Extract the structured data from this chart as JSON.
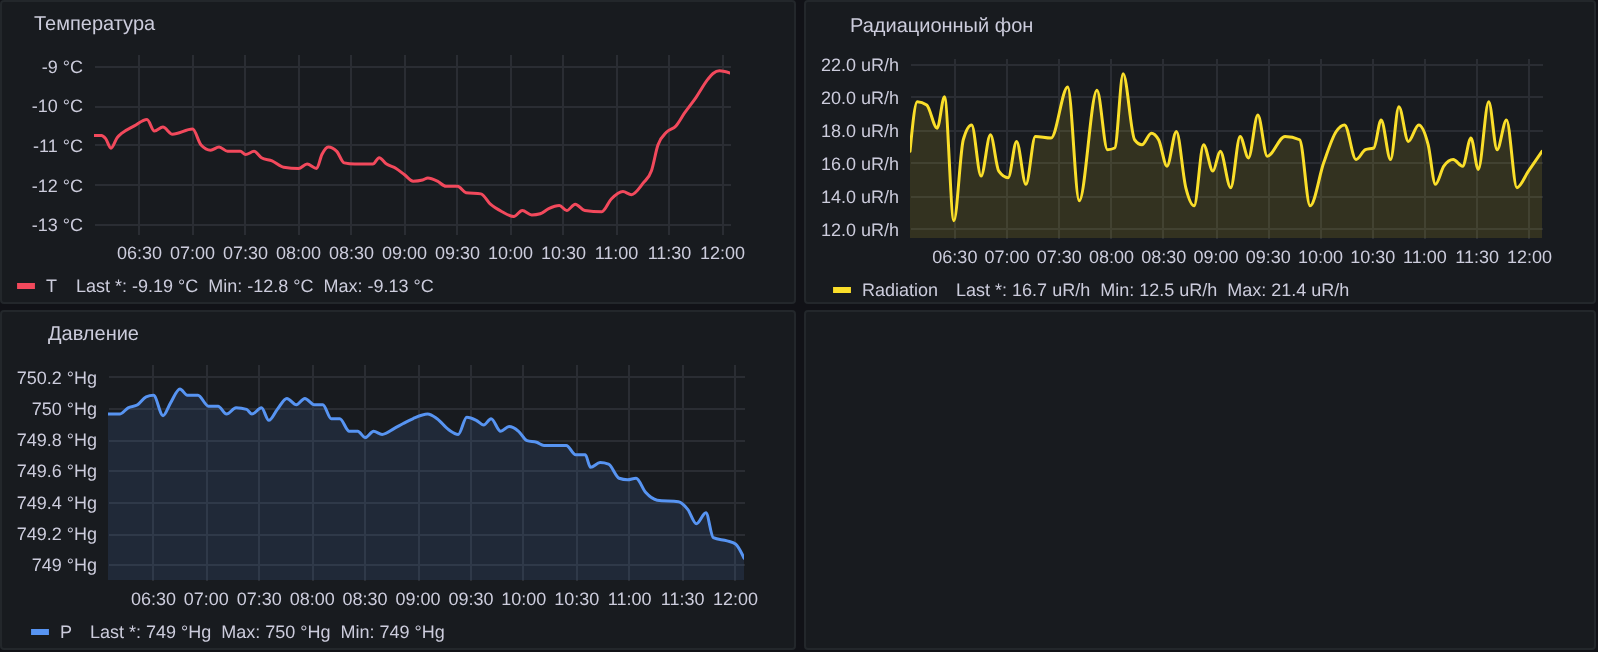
{
  "chart_data": [
    {
      "type": "line",
      "title": "Температура",
      "legend": "bottom left",
      "grid": true,
      "annotations": [
        "Last *: -9.19 °C  Min: -12.8 °C  Max: -9.13 °C"
      ],
      "xlim": [
        6.08,
        12.08
      ],
      "xticks": [
        {
          "value": 6.5,
          "label": "06:30"
        },
        {
          "value": 7,
          "label": "07:00"
        },
        {
          "value": 7.5,
          "label": "07:30"
        },
        {
          "value": 8,
          "label": "08:00"
        },
        {
          "value": 8.5,
          "label": "08:30"
        },
        {
          "value": 9,
          "label": "09:00"
        },
        {
          "value": 9.5,
          "label": "09:30"
        },
        {
          "value": 10,
          "label": "10:00"
        },
        {
          "value": 10.5,
          "label": "10:30"
        },
        {
          "value": 11,
          "label": "11:00"
        },
        {
          "value": 11.5,
          "label": "11:30"
        },
        {
          "value": 12,
          "label": "12:00"
        }
      ],
      "ylim": [
        -13.24,
        -8.71
      ],
      "yticks": [
        {
          "value": -13,
          "label": "-13 °C"
        },
        {
          "value": -12,
          "label": "-12 °C"
        },
        {
          "value": -11,
          "label": "-11 °C"
        },
        {
          "value": -10,
          "label": "-10 °C"
        },
        {
          "value": -9,
          "label": "-9 °C"
        }
      ],
      "x": [
        6.08,
        6.15,
        6.19,
        6.24,
        6.3,
        6.34,
        6.46,
        6.58,
        6.65,
        6.73,
        6.82,
        7.01,
        7.09,
        7.18,
        7.26,
        7.34,
        7.46,
        7.51,
        7.59,
        7.66,
        7.76,
        7.87,
        8.01,
        8.09,
        8.18,
        8.23,
        8.29,
        8.37,
        8.44,
        8.54,
        8.71,
        8.77,
        8.84,
        8.93,
        9.01,
        9.09,
        9.18,
        9.23,
        9.32,
        9.4,
        9.51,
        9.59,
        9.73,
        9.82,
        9.93,
        10.04,
        10.12,
        10.21,
        10.29,
        10.37,
        10.47,
        10.54,
        10.62,
        10.71,
        10.87,
        10.96,
        11.07,
        11.15,
        11.26,
        11.34,
        11.4,
        11.48,
        11.57,
        11.65,
        11.76,
        11.87,
        11.92,
        11.98,
        12.03,
        12.08
      ],
      "series": [
        {
          "name": "T",
          "color": "#f2495c",
          "values": [
            -10.76,
            -10.76,
            -10.84,
            -11.08,
            -10.81,
            -10.71,
            -10.52,
            -10.36,
            -10.65,
            -10.55,
            -10.73,
            -10.6,
            -11.0,
            -11.13,
            -11.05,
            -11.16,
            -11.16,
            -11.24,
            -11.16,
            -11.32,
            -11.4,
            -11.56,
            -11.59,
            -11.48,
            -11.59,
            -11.24,
            -11.05,
            -11.16,
            -11.45,
            -11.48,
            -11.48,
            -11.32,
            -11.48,
            -11.59,
            -11.75,
            -11.91,
            -11.88,
            -11.83,
            -11.91,
            -12.04,
            -12.04,
            -12.2,
            -12.23,
            -12.49,
            -12.68,
            -12.8,
            -12.65,
            -12.76,
            -12.73,
            -12.6,
            -12.52,
            -12.65,
            -12.49,
            -12.65,
            -12.68,
            -12.36,
            -12.17,
            -12.25,
            -11.96,
            -11.64,
            -11.0,
            -10.68,
            -10.52,
            -10.2,
            -9.8,
            -9.35,
            -9.2,
            -9.13,
            -9.15,
            -9.19
          ]
        }
      ]
    },
    {
      "type": "area",
      "title": "Радиационный фон",
      "legend": "bottom left",
      "grid": true,
      "annotations": [
        "Last *: 16.7 uR/h  Min: 12.5 uR/h  Max: 21.4 uR/h"
      ],
      "xlim": [
        6.08,
        12.13
      ],
      "xticks": [
        {
          "value": 6.5,
          "label": "06:30"
        },
        {
          "value": 7,
          "label": "07:00"
        },
        {
          "value": 7.5,
          "label": "07:30"
        },
        {
          "value": 8,
          "label": "08:00"
        },
        {
          "value": 8.5,
          "label": "08:30"
        },
        {
          "value": 9,
          "label": "09:00"
        },
        {
          "value": 9.5,
          "label": "09:30"
        },
        {
          "value": 10,
          "label": "10:00"
        },
        {
          "value": 10.5,
          "label": "10:30"
        },
        {
          "value": 11,
          "label": "11:00"
        },
        {
          "value": 11.5,
          "label": "11:30"
        },
        {
          "value": 12,
          "label": "12:00"
        }
      ],
      "ylim": [
        11.45,
        22.35
      ],
      "yticks": [
        {
          "value": 12,
          "label": "12.0 uR/h"
        },
        {
          "value": 14,
          "label": "14.0 uR/h"
        },
        {
          "value": 16,
          "label": "16.0 uR/h"
        },
        {
          "value": 18,
          "label": "18.0 uR/h"
        },
        {
          "value": 20,
          "label": "20.0 uR/h"
        },
        {
          "value": 22,
          "label": "22.0 uR/h"
        }
      ],
      "x": [
        6.08,
        6.15,
        6.24,
        6.34,
        6.41,
        6.5,
        6.59,
        6.67,
        6.76,
        6.85,
        6.93,
        7.02,
        7.1,
        7.19,
        7.28,
        7.43,
        7.59,
        7.7,
        7.87,
        7.97,
        8.04,
        8.12,
        8.23,
        8.3,
        8.39,
        8.46,
        8.54,
        8.63,
        8.72,
        8.8,
        8.89,
        8.98,
        9.05,
        9.15,
        9.24,
        9.32,
        9.41,
        9.5,
        9.67,
        9.81,
        9.91,
        10.04,
        10.16,
        10.24,
        10.35,
        10.44,
        10.52,
        10.59,
        10.68,
        10.76,
        10.85,
        10.95,
        11.04,
        11.11,
        11.19,
        11.28,
        11.37,
        11.45,
        11.52,
        11.62,
        11.7,
        11.79,
        11.89,
        12.0,
        12.13
      ],
      "series": [
        {
          "name": "Radiation",
          "color": "#fade2a",
          "values": [
            16.7,
            19.7,
            19.5,
            18.1,
            20.0,
            12.5,
            17.4,
            18.3,
            15.2,
            17.7,
            15.5,
            15.1,
            17.3,
            14.7,
            17.6,
            17.5,
            20.6,
            13.7,
            20.4,
            16.8,
            16.9,
            21.4,
            17.4,
            17.1,
            17.8,
            17.4,
            15.8,
            17.9,
            14.5,
            13.4,
            17.1,
            15.5,
            16.7,
            14.5,
            17.6,
            16.3,
            18.9,
            16.4,
            17.6,
            17.4,
            13.4,
            16.0,
            17.9,
            18.3,
            16.2,
            16.8,
            16.9,
            18.6,
            16.2,
            19.4,
            17.3,
            18.3,
            17.1,
            14.7,
            15.8,
            16.2,
            15.8,
            17.5,
            15.6,
            19.7,
            16.8,
            18.6,
            14.5,
            15.5,
            16.7
          ]
        }
      ]
    },
    {
      "type": "area",
      "title": "Давление",
      "legend": "bottom left",
      "grid": true,
      "annotations": [
        "Last *: 749 °Hg  Max: 750 °Hg  Min: 749 °Hg"
      ],
      "xlim": [
        6.08,
        12.09
      ],
      "xticks": [
        {
          "value": 6.5,
          "label": "06:30"
        },
        {
          "value": 7,
          "label": "07:00"
        },
        {
          "value": 7.5,
          "label": "07:30"
        },
        {
          "value": 8,
          "label": "08:00"
        },
        {
          "value": 8.5,
          "label": "08:30"
        },
        {
          "value": 9,
          "label": "09:00"
        },
        {
          "value": 9.5,
          "label": "09:30"
        },
        {
          "value": 10,
          "label": "10:00"
        },
        {
          "value": 10.5,
          "label": "10:30"
        },
        {
          "value": 11,
          "label": "11:00"
        },
        {
          "value": 11.5,
          "label": "11:30"
        },
        {
          "value": 12,
          "label": "12:00"
        }
      ],
      "ylim": [
        748.9,
        750.28
      ],
      "yticks": [
        {
          "value": 749,
          "label": "749 °Hg"
        },
        {
          "value": 749.2,
          "label": "749.2 °Hg"
        },
        {
          "value": 749.4,
          "label": "749.4 °Hg"
        },
        {
          "value": 749.6,
          "label": "749.6 °Hg"
        },
        {
          "value": 749.8,
          "label": "749.8 °Hg"
        },
        {
          "value": 750,
          "label": "750 °Hg"
        },
        {
          "value": 750.2,
          "label": "750.2 °Hg"
        }
      ],
      "x": [
        6.08,
        6.19,
        6.27,
        6.36,
        6.44,
        6.51,
        6.6,
        6.67,
        6.76,
        6.83,
        6.93,
        7.03,
        7.12,
        7.2,
        7.29,
        7.39,
        7.44,
        7.53,
        7.6,
        7.68,
        7.77,
        7.86,
        7.94,
        8.03,
        8.11,
        8.19,
        8.27,
        8.36,
        8.44,
        8.51,
        8.59,
        8.67,
        8.79,
        8.87,
        8.96,
        9.1,
        9.19,
        9.3,
        9.39,
        9.47,
        9.56,
        9.63,
        9.7,
        9.79,
        9.87,
        9.96,
        10.04,
        10.13,
        10.2,
        10.33,
        10.41,
        10.5,
        10.59,
        10.64,
        10.73,
        10.81,
        10.91,
        10.99,
        11.07,
        11.16,
        11.27,
        11.47,
        11.56,
        11.64,
        11.73,
        11.8,
        11.93,
        12.01,
        12.09
      ],
      "series": [
        {
          "name": "P",
          "color": "#5794f2",
          "values": [
            749.96,
            749.96,
            750.0,
            750.02,
            750.07,
            750.08,
            749.95,
            750.03,
            750.12,
            750.08,
            750.08,
            750.01,
            750.01,
            749.96,
            750.0,
            749.99,
            749.96,
            750.0,
            749.92,
            749.99,
            750.06,
            750.02,
            750.06,
            750.02,
            750.02,
            749.93,
            749.93,
            749.85,
            749.85,
            749.81,
            749.85,
            749.83,
            749.87,
            749.9,
            749.93,
            749.96,
            749.93,
            749.86,
            749.83,
            749.94,
            749.92,
            749.89,
            749.93,
            749.85,
            749.88,
            749.85,
            749.79,
            749.78,
            749.76,
            749.76,
            749.76,
            749.7,
            749.7,
            749.62,
            749.65,
            749.64,
            749.55,
            749.54,
            749.55,
            749.46,
            749.41,
            749.4,
            749.35,
            749.26,
            749.33,
            749.17,
            749.15,
            749.13,
            749.04
          ]
        }
      ]
    }
  ]
}
